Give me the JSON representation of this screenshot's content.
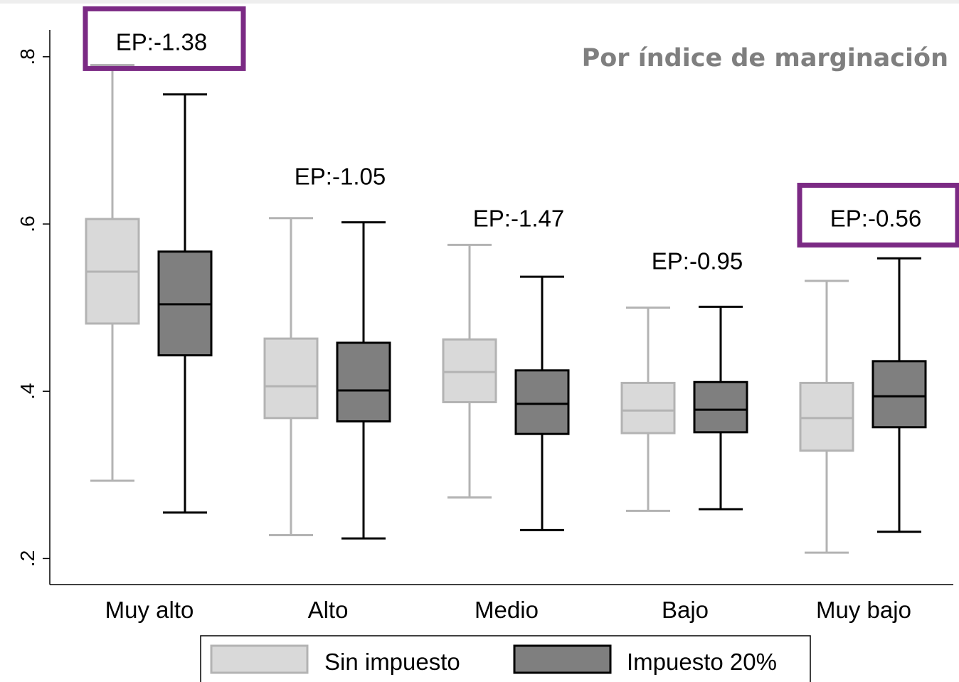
{
  "chart_data": {
    "type": "box",
    "title": "Por índice de marginación",
    "xlabel": "",
    "ylabel": "",
    "ylim": [
      0.17,
      0.86
    ],
    "yticks": [
      {
        "value": 0.2,
        "label": ".2"
      },
      {
        "value": 0.4,
        "label": ".4"
      },
      {
        "value": 0.6,
        "label": ".6"
      },
      {
        "value": 0.8,
        "label": ".8"
      }
    ],
    "grid": false,
    "legend_position": "bottom",
    "categories": [
      "Muy alto",
      "Alto",
      "Medio",
      "Bajo",
      "Muy bajo"
    ],
    "series": [
      {
        "name": "Sin impuesto",
        "fill": "#d9d9d9",
        "stroke": "#b3b3b3",
        "boxes": [
          {
            "min": 0.293,
            "q1": 0.481,
            "median": 0.543,
            "q3": 0.606,
            "max": 0.79
          },
          {
            "min": 0.228,
            "q1": 0.368,
            "median": 0.406,
            "q3": 0.463,
            "max": 0.607
          },
          {
            "min": 0.273,
            "q1": 0.387,
            "median": 0.423,
            "q3": 0.462,
            "max": 0.575
          },
          {
            "min": 0.257,
            "q1": 0.35,
            "median": 0.377,
            "q3": 0.41,
            "max": 0.5
          },
          {
            "min": 0.207,
            "q1": 0.329,
            "median": 0.368,
            "q3": 0.41,
            "max": 0.532
          }
        ]
      },
      {
        "name": "Impuesto 20%",
        "fill": "#7f7f7f",
        "stroke": "#000000",
        "boxes": [
          {
            "min": 0.255,
            "q1": 0.443,
            "median": 0.504,
            "q3": 0.567,
            "max": 0.755
          },
          {
            "min": 0.224,
            "q1": 0.364,
            "median": 0.401,
            "q3": 0.458,
            "max": 0.602
          },
          {
            "min": 0.234,
            "q1": 0.349,
            "median": 0.385,
            "q3": 0.425,
            "max": 0.537
          },
          {
            "min": 0.259,
            "q1": 0.351,
            "median": 0.378,
            "q3": 0.411,
            "max": 0.501
          },
          {
            "min": 0.232,
            "q1": 0.357,
            "median": 0.394,
            "q3": 0.436,
            "max": 0.559
          }
        ]
      }
    ],
    "annotations": [
      {
        "category": "Muy alto",
        "text": "EP:-1.38",
        "value": 0.808,
        "highlighted": true
      },
      {
        "category": "Alto",
        "text": "EP:-1.05",
        "value": 0.647,
        "highlighted": false
      },
      {
        "category": "Medio",
        "text": "EP:-1.47",
        "value": 0.597,
        "highlighted": false
      },
      {
        "category": "Bajo",
        "text": "EP:-0.95",
        "value": 0.546,
        "highlighted": false
      },
      {
        "category": "Muy bajo",
        "text": "EP:-0.56",
        "value": 0.597,
        "highlighted": true
      }
    ],
    "highlight_color": "#7b2a84"
  }
}
